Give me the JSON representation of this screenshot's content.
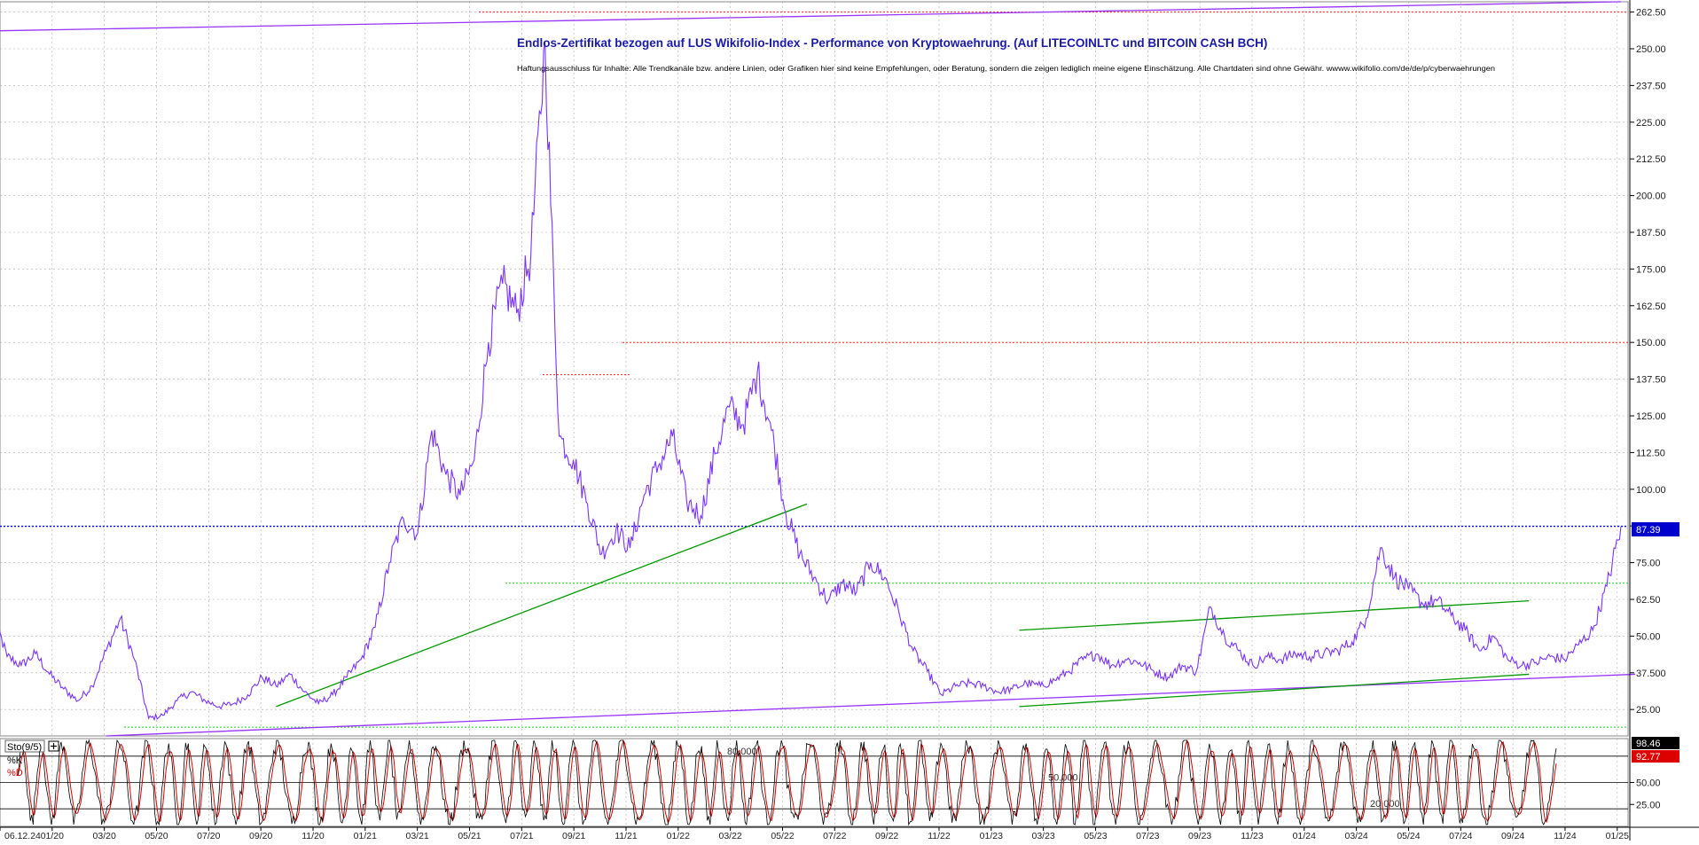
{
  "chart_data": [
    {
      "type": "line",
      "title": "Endlos-Zertifikat bezogen auf LUS Wikifolio-Index - Performance von Kryptowaehrung. (Auf LITECOINLTC und BITCOIN CASH BCH)",
      "subtitle": "Haftungsausschluss für Inhalte: Alle Trendkanäle bzw. andere Linien, oder Grafiken hier sind keine Empfehlungen, oder Beratung, sondern die zeigen lediglich meine eigene Einschätzung. Alle Chartdaten sind ohne Gewähr.  wwww.wikifolio.com/de/de/p/cyberwaehrungen",
      "grid": true,
      "ylim": [
        16,
        266
      ],
      "y_ticks": [
        25,
        37.5,
        50,
        62.5,
        75,
        87.5,
        100,
        112.5,
        125,
        137.5,
        150,
        162.5,
        175,
        187.5,
        200,
        212.5,
        225,
        237.5,
        250,
        262.5
      ],
      "y_tick_labels": [
        "25.00",
        "37.500",
        "50.00",
        "62.50",
        "75.00",
        "",
        "100.00",
        "112.50",
        "125.00",
        "137.50",
        "150.00",
        "162.50",
        "175.00",
        "187.50",
        "200.00",
        "212.50",
        "225.00",
        "237.50",
        "250.00",
        "262.50"
      ],
      "x_tick_labels": [
        "06.12.24",
        "01/20",
        "03/20",
        "05/20",
        "07/20",
        "09/20",
        "11/20",
        "01/21",
        "03/21",
        "05/21",
        "07/21",
        "09/21",
        "11/21",
        "01/22",
        "03/22",
        "05/22",
        "07/22",
        "09/22",
        "11/22",
        "01/23",
        "03/23",
        "05/23",
        "07/23",
        "09/23",
        "11/23",
        "01/24",
        "03/24",
        "05/24",
        "07/24",
        "09/24",
        "11/24",
        "01/25"
      ],
      "last_value": "87.39",
      "series": [
        {
          "values": [
            [
              0,
              58
            ],
            [
              2,
              43
            ],
            [
              4,
              40
            ],
            [
              6,
              44
            ],
            [
              8,
              37
            ],
            [
              10,
              32
            ],
            [
              12,
              28
            ],
            [
              14,
              33
            ],
            [
              16,
              45
            ],
            [
              18,
              56
            ],
            [
              20,
              42
            ],
            [
              22,
              22
            ],
            [
              24,
              23
            ],
            [
              26,
              28
            ],
            [
              28,
              31
            ],
            [
              30,
              28
            ],
            [
              32,
              26
            ],
            [
              34,
              27
            ],
            [
              36,
              30
            ],
            [
              38,
              36
            ],
            [
              40,
              33
            ],
            [
              42,
              37
            ],
            [
              44,
              31
            ],
            [
              46,
              27
            ],
            [
              48,
              30
            ],
            [
              50,
              36
            ],
            [
              52,
              42
            ],
            [
              54,
              53
            ],
            [
              56,
              75
            ],
            [
              58,
              90
            ],
            [
              60,
              85
            ],
            [
              62,
              120
            ],
            [
              64,
              105
            ],
            [
              66,
              98
            ],
            [
              68,
              110
            ],
            [
              70,
              150
            ],
            [
              72,
              170
            ],
            [
              74,
              160
            ],
            [
              76,
              180
            ],
            [
              78,
              252
            ],
            [
              80,
              118
            ],
            [
              82,
              110
            ],
            [
              84,
              95
            ],
            [
              86,
              78
            ],
            [
              88,
              86
            ],
            [
              90,
              80
            ],
            [
              92,
              98
            ],
            [
              94,
              108
            ],
            [
              96,
              118
            ],
            [
              98,
              96
            ],
            [
              100,
              91
            ],
            [
              102,
              112
            ],
            [
              104,
              128
            ],
            [
              106,
              122
            ],
            [
              108,
              140
            ],
            [
              110,
              120
            ],
            [
              112,
              92
            ],
            [
              114,
              78
            ],
            [
              116,
              70
            ],
            [
              118,
              62
            ],
            [
              120,
              68
            ],
            [
              122,
              65
            ],
            [
              124,
              75
            ],
            [
              126,
              70
            ],
            [
              128,
              58
            ],
            [
              130,
              45
            ],
            [
              132,
              38
            ],
            [
              134,
              30
            ],
            [
              136,
              33
            ],
            [
              138,
              34
            ],
            [
              140,
              33
            ],
            [
              142,
              31
            ],
            [
              144,
              32
            ],
            [
              146,
              34
            ],
            [
              148,
              33
            ],
            [
              150,
              35
            ],
            [
              152,
              38
            ],
            [
              154,
              42
            ],
            [
              156,
              44
            ],
            [
              158,
              40
            ],
            [
              160,
              42
            ],
            [
              162,
              41
            ],
            [
              164,
              38
            ],
            [
              166,
              36
            ],
            [
              168,
              40
            ],
            [
              170,
              38
            ],
            [
              172,
              60
            ],
            [
              174,
              50
            ],
            [
              176,
              45
            ],
            [
              178,
              40
            ],
            [
              180,
              43
            ],
            [
              182,
              42
            ],
            [
              184,
              44
            ],
            [
              186,
              43
            ],
            [
              188,
              44
            ],
            [
              190,
              45
            ],
            [
              192,
              48
            ],
            [
              194,
              56
            ],
            [
              196,
              80
            ],
            [
              198,
              70
            ],
            [
              200,
              66
            ],
            [
              202,
              61
            ],
            [
              204,
              62
            ],
            [
              206,
              57
            ],
            [
              208,
              52
            ],
            [
              210,
              45
            ],
            [
              212,
              50
            ],
            [
              214,
              42
            ],
            [
              216,
              40
            ],
            [
              218,
              41
            ],
            [
              220,
              43
            ],
            [
              222,
              42
            ],
            [
              224,
              47
            ],
            [
              226,
              52
            ],
            [
              228,
              67
            ],
            [
              230,
              87.4
            ]
          ]
        }
      ],
      "hlines": [
        {
          "y": 262.5,
          "style": "red-dotted"
        },
        {
          "y": 150,
          "style": "red-dotted"
        },
        {
          "y": 139,
          "style": "red-dotted"
        },
        {
          "y": 87.39,
          "style": "blue-dotted"
        },
        {
          "y": 68,
          "style": "green-dotted"
        },
        {
          "y": 19,
          "style": "green-dotted"
        }
      ],
      "trendlines": [
        {
          "color": "#9933ff",
          "from": [
            -2,
            256
          ],
          "to": [
            230,
            266
          ]
        },
        {
          "color": "#9933ff",
          "from": [
            16,
            16
          ],
          "to": [
            232,
            37
          ]
        },
        {
          "color": "#009900",
          "from": [
            40,
            26
          ],
          "to": [
            115,
            95
          ]
        },
        {
          "color": "#009900",
          "from": [
            145,
            52
          ],
          "to": [
            217,
            62
          ]
        },
        {
          "color": "#009900",
          "from": [
            145,
            26
          ],
          "to": [
            217,
            37
          ]
        }
      ]
    },
    {
      "type": "line",
      "title": "Sto(9/5)",
      "legend": [
        "%K",
        "%D"
      ],
      "ylim": [
        0,
        100
      ],
      "levels": [
        {
          "value": 80,
          "label": "80.000"
        },
        {
          "value": 50,
          "label": "50.000"
        },
        {
          "value": 20,
          "label": "20.000"
        }
      ],
      "y_tick_labels": [
        "25.00",
        "50.00"
      ],
      "last_k": "98.46",
      "last_d": "92.77"
    }
  ],
  "colors": {
    "price": "#7a33ff",
    "trend_purple": "#9933ff",
    "trend_green": "#009900",
    "k_line": "#000000",
    "d_line": "#dd0000",
    "last_label_bg": "#0000cc"
  }
}
